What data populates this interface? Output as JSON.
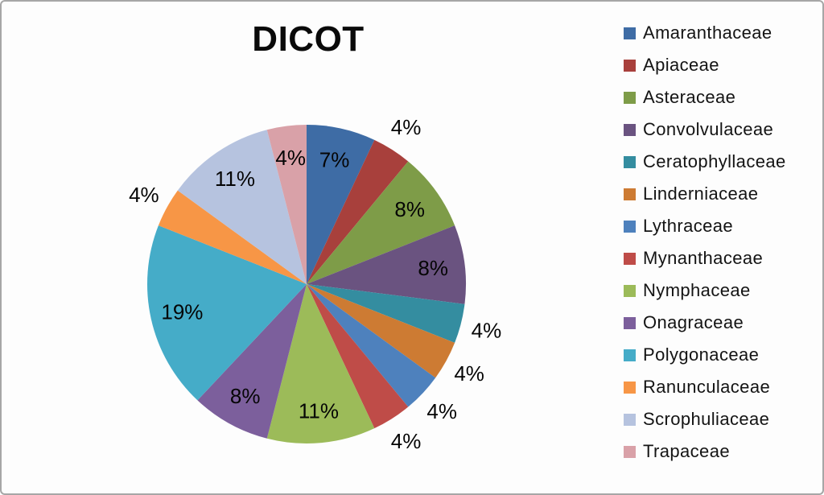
{
  "canvas": {
    "background": "#FDFDFD",
    "border_color": "#A6A6A6"
  },
  "chart_data": {
    "type": "pie",
    "title": "DICOT",
    "legend_position": "right",
    "start_angle_deg": 0,
    "direction": "clockwise",
    "data_labels": "percent",
    "label_color": "#000000",
    "slices": [
      {
        "label": "Amaranthaceae",
        "value": 7,
        "pct_label": "7%",
        "color": "#3E6CA5",
        "label_inside": true
      },
      {
        "label": "Apiaceae",
        "value": 4,
        "pct_label": "4%",
        "color": "#A8403C",
        "label_inside": false
      },
      {
        "label": "Asteraceae",
        "value": 8,
        "pct_label": "8%",
        "color": "#7E9C48",
        "label_inside": true
      },
      {
        "label": "Convolvulaceae",
        "value": 8,
        "pct_label": "8%",
        "color": "#6A5380",
        "label_inside": true
      },
      {
        "label": "Ceratophyllaceae",
        "value": 4,
        "pct_label": "4%",
        "color": "#348DA0",
        "label_inside": false
      },
      {
        "label": "Linderniaceae",
        "value": 4,
        "pct_label": "4%",
        "color": "#CD7B33",
        "label_inside": false
      },
      {
        "label": "Lythraceae",
        "value": 4,
        "pct_label": "4%",
        "color": "#4E81BD",
        "label_inside": false
      },
      {
        "label": "Mynanthaceae",
        "value": 4,
        "pct_label": "4%",
        "color": "#BF4C48",
        "label_inside": false
      },
      {
        "label": "Nymphaceae",
        "value": 11,
        "pct_label": "11%",
        "color": "#9CBB59",
        "label_inside": true
      },
      {
        "label": "Onagraceae",
        "value": 8,
        "pct_label": "8%",
        "color": "#7C5F9C",
        "label_inside": true
      },
      {
        "label": "Polygonaceae",
        "value": 19,
        "pct_label": "19%",
        "color": "#45ACC8",
        "label_inside": true
      },
      {
        "label": "Ranunculaceae",
        "value": 4,
        "pct_label": "4%",
        "color": "#F79646",
        "label_inside": false
      },
      {
        "label": "Scrophuliaceae",
        "value": 11,
        "pct_label": "11%",
        "color": "#B6C3DF",
        "label_inside": true
      },
      {
        "label": "Trapaceae",
        "value": 4,
        "pct_label": "4%",
        "color": "#D9A1A8",
        "label_inside": true
      }
    ]
  }
}
